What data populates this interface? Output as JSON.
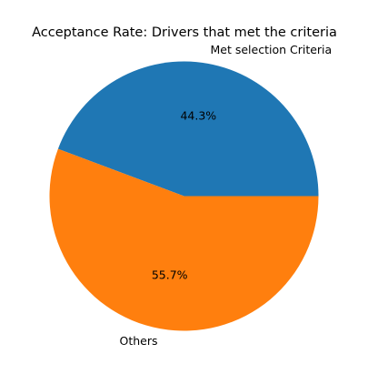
{
  "chart_data": {
    "type": "pie",
    "title": "Acceptance Rate: Drivers that met the criteria",
    "slices": [
      {
        "label": "Met selection Criteria",
        "value": 44.3,
        "pct_label": "44.3%",
        "color": "#1f77b4"
      },
      {
        "label": "Others",
        "value": 55.7,
        "pct_label": "55.7%",
        "color": "#ff7f0e"
      }
    ],
    "start_angle_deg": 0,
    "direction": "counterclockwise",
    "legend": "none"
  }
}
